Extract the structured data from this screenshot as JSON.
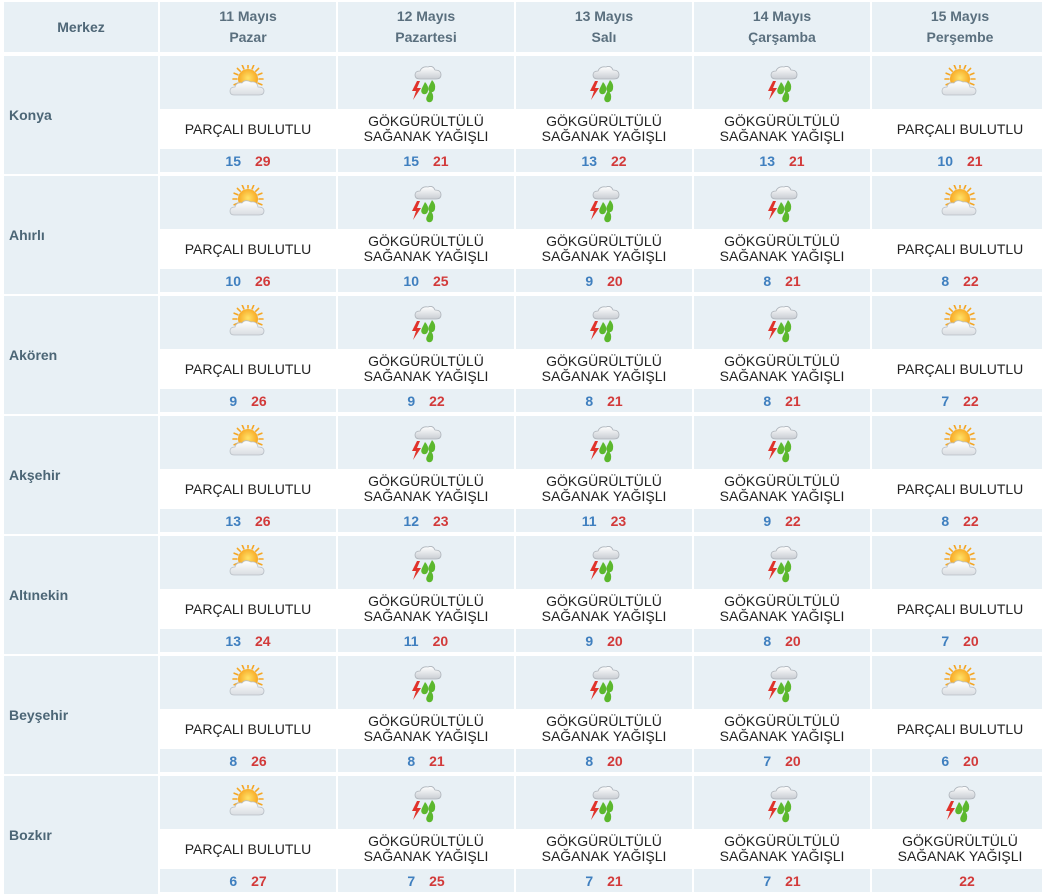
{
  "header": {
    "merkez_label": "Merkez",
    "days": [
      {
        "date": "11 Mayıs",
        "weekday": "Pazar"
      },
      {
        "date": "12 Mayıs",
        "weekday": "Pazartesi"
      },
      {
        "date": "13 Mayıs",
        "weekday": "Salı"
      },
      {
        "date": "14 Mayıs",
        "weekday": "Çarşamba"
      },
      {
        "date": "15 Mayıs",
        "weekday": "Perşembe"
      }
    ]
  },
  "conditions": {
    "partly_cloudy": {
      "line1": "PARÇALI BULUTLU",
      "line2": "",
      "icon": "partly-cloudy-icon"
    },
    "thunder_showers": {
      "line1": "GÖKGÜRÜLTÜLÜ",
      "line2": "SAĞANAK YAĞIŞLI",
      "icon": "thunderstorm-rain-icon"
    }
  },
  "colors": {
    "min": "#3f7fbf",
    "max": "#d23a3a",
    "cell_bg": "#e8f0f5"
  },
  "cities": [
    {
      "name": "Konya",
      "days": [
        {
          "cond": "partly_cloudy",
          "min": "15",
          "max": "29"
        },
        {
          "cond": "thunder_showers",
          "min": "15",
          "max": "21"
        },
        {
          "cond": "thunder_showers",
          "min": "13",
          "max": "22"
        },
        {
          "cond": "thunder_showers",
          "min": "13",
          "max": "21"
        },
        {
          "cond": "partly_cloudy",
          "min": "10",
          "max": "21"
        }
      ]
    },
    {
      "name": "Ahırlı",
      "days": [
        {
          "cond": "partly_cloudy",
          "min": "10",
          "max": "26"
        },
        {
          "cond": "thunder_showers",
          "min": "10",
          "max": "25"
        },
        {
          "cond": "thunder_showers",
          "min": "9",
          "max": "20"
        },
        {
          "cond": "thunder_showers",
          "min": "8",
          "max": "21"
        },
        {
          "cond": "partly_cloudy",
          "min": "8",
          "max": "22"
        }
      ]
    },
    {
      "name": "Akören",
      "days": [
        {
          "cond": "partly_cloudy",
          "min": "9",
          "max": "26"
        },
        {
          "cond": "thunder_showers",
          "min": "9",
          "max": "22"
        },
        {
          "cond": "thunder_showers",
          "min": "8",
          "max": "21"
        },
        {
          "cond": "thunder_showers",
          "min": "8",
          "max": "21"
        },
        {
          "cond": "partly_cloudy",
          "min": "7",
          "max": "22"
        }
      ]
    },
    {
      "name": "Akşehir",
      "days": [
        {
          "cond": "partly_cloudy",
          "min": "13",
          "max": "26"
        },
        {
          "cond": "thunder_showers",
          "min": "12",
          "max": "23"
        },
        {
          "cond": "thunder_showers",
          "min": "11",
          "max": "23"
        },
        {
          "cond": "thunder_showers",
          "min": "9",
          "max": "22"
        },
        {
          "cond": "partly_cloudy",
          "min": "8",
          "max": "22"
        }
      ]
    },
    {
      "name": "Altınekin",
      "days": [
        {
          "cond": "partly_cloudy",
          "min": "13",
          "max": "24"
        },
        {
          "cond": "thunder_showers",
          "min": "11",
          "max": "20"
        },
        {
          "cond": "thunder_showers",
          "min": "9",
          "max": "20"
        },
        {
          "cond": "thunder_showers",
          "min": "8",
          "max": "20"
        },
        {
          "cond": "partly_cloudy",
          "min": "7",
          "max": "20"
        }
      ]
    },
    {
      "name": "Beyşehir",
      "days": [
        {
          "cond": "partly_cloudy",
          "min": "8",
          "max": "26"
        },
        {
          "cond": "thunder_showers",
          "min": "8",
          "max": "21"
        },
        {
          "cond": "thunder_showers",
          "min": "8",
          "max": "20"
        },
        {
          "cond": "thunder_showers",
          "min": "7",
          "max": "20"
        },
        {
          "cond": "partly_cloudy",
          "min": "6",
          "max": "20"
        }
      ]
    },
    {
      "name": "Bozkır",
      "days": [
        {
          "cond": "partly_cloudy",
          "min": "6",
          "max": "27"
        },
        {
          "cond": "thunder_showers",
          "min": "7",
          "max": "25"
        },
        {
          "cond": "thunder_showers",
          "min": "7",
          "max": "21"
        },
        {
          "cond": "thunder_showers",
          "min": "7",
          "max": "21"
        },
        {
          "cond": "thunder_showers",
          "min": "",
          "max": "22"
        }
      ]
    }
  ]
}
